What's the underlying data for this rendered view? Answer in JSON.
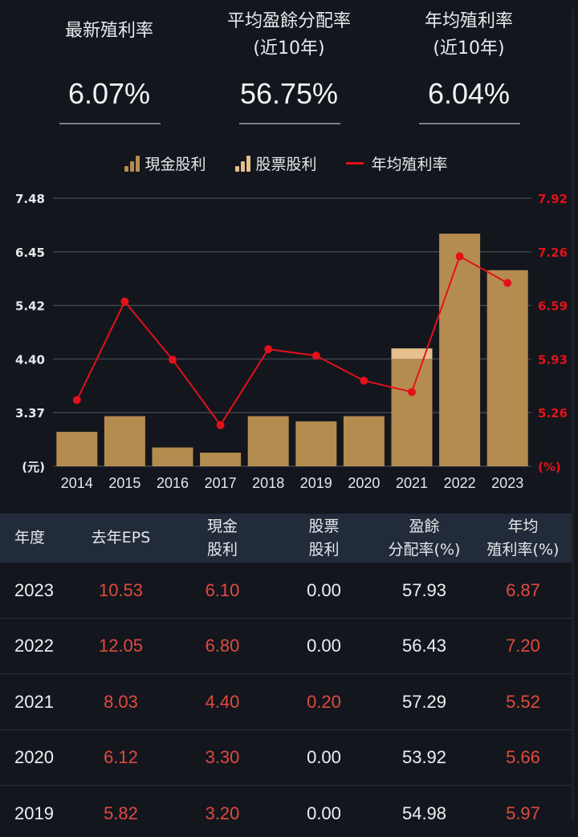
{
  "summary": [
    {
      "label_line1": "最新殖利率",
      "label_line2": "",
      "value": "6.07%"
    },
    {
      "label_line1": "平均盈餘分配率",
      "label_line2": "(近10年)",
      "value": "56.75%"
    },
    {
      "label_line1": "年均殖利率",
      "label_line2": "(近10年)",
      "value": "6.04%"
    }
  ],
  "legend": {
    "cash": "現金股利",
    "stock": "股票股利",
    "yield": "年均殖利率"
  },
  "colors": {
    "background": "#13161d",
    "cash_bar": "#b58c50",
    "stock_bar": "#e5c08c",
    "yield_line": "#e3111a",
    "header_bg": "#222b3a",
    "red_text": "#e04a40"
  },
  "chart_data": {
    "type": "bar",
    "title": "",
    "categories": [
      "2014",
      "2015",
      "2016",
      "2017",
      "2018",
      "2019",
      "2020",
      "2021",
      "2022",
      "2023"
    ],
    "series": [
      {
        "name": "現金股利",
        "type": "bar",
        "axis": "left",
        "stacked": true,
        "values": [
          3.0,
          3.3,
          2.7,
          2.6,
          3.3,
          3.2,
          3.3,
          4.4,
          6.8,
          6.1
        ]
      },
      {
        "name": "股票股利",
        "type": "bar",
        "axis": "left",
        "stacked": true,
        "values": [
          0,
          0,
          0,
          0,
          0,
          0.0,
          0.0,
          0.2,
          0.0,
          0.0
        ]
      },
      {
        "name": "年均殖利率",
        "type": "line",
        "axis": "right",
        "values": [
          5.42,
          6.64,
          5.92,
          5.11,
          6.05,
          5.97,
          5.66,
          5.52,
          7.2,
          6.87
        ]
      }
    ],
    "left_axis": {
      "label": "(元)",
      "ticks": [
        "7.48",
        "6.45",
        "5.42",
        "4.40",
        "3.37"
      ],
      "ylim": [
        2.34,
        7.48
      ]
    },
    "right_axis": {
      "label": "(%)",
      "ticks": [
        "7.92",
        "7.26",
        "6.59",
        "5.93",
        "5.26"
      ],
      "ylim": [
        4.6,
        7.92
      ]
    },
    "xlabel": "",
    "grid": true,
    "legend_position": "top"
  },
  "table": {
    "headers": [
      {
        "l1": "年度",
        "l2": ""
      },
      {
        "l1": "去年EPS",
        "l2": ""
      },
      {
        "l1": "現金",
        "l2": "股利"
      },
      {
        "l1": "股票",
        "l2": "股利"
      },
      {
        "l1": "盈餘",
        "l2": "分配率(%)"
      },
      {
        "l1": "年均",
        "l2": "殖利率(%)"
      }
    ],
    "rows": [
      {
        "year": "2023",
        "eps": "10.53",
        "cash": "6.10",
        "stock": "0.00",
        "payout": "57.93",
        "yield": "6.87"
      },
      {
        "year": "2022",
        "eps": "12.05",
        "cash": "6.80",
        "stock": "0.00",
        "payout": "56.43",
        "yield": "7.20"
      },
      {
        "year": "2021",
        "eps": "8.03",
        "cash": "4.40",
        "stock": "0.20",
        "payout": "57.29",
        "yield": "5.52"
      },
      {
        "year": "2020",
        "eps": "6.12",
        "cash": "3.30",
        "stock": "0.00",
        "payout": "53.92",
        "yield": "5.66"
      },
      {
        "year": "2019",
        "eps": "5.82",
        "cash": "3.20",
        "stock": "0.00",
        "payout": "54.98",
        "yield": "5.97"
      }
    ]
  }
}
